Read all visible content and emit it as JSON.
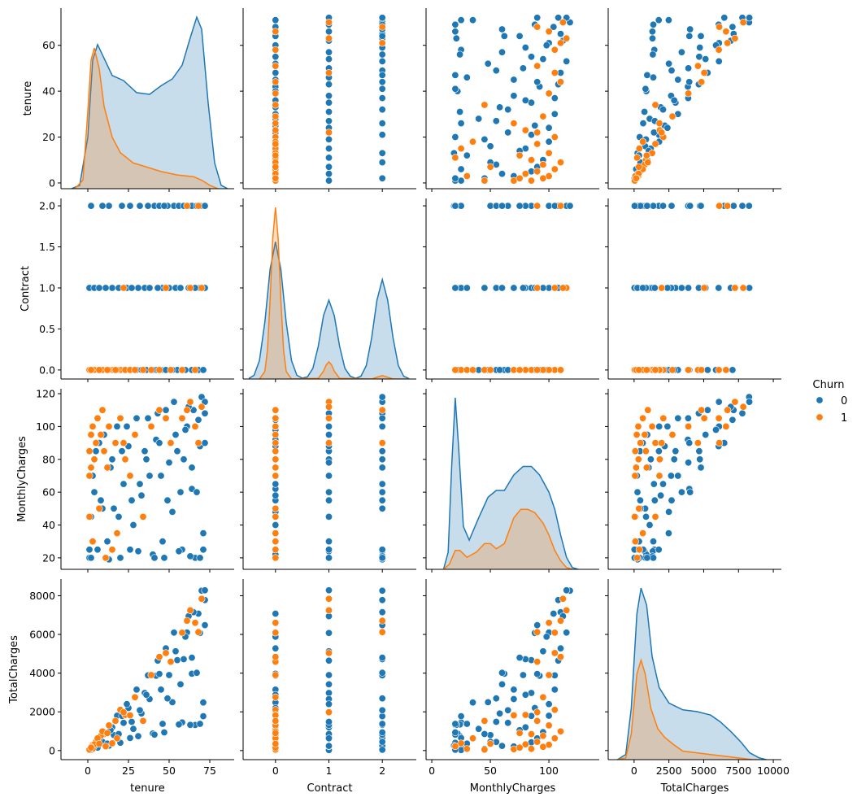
{
  "chart_data": {
    "type": "pairplot",
    "variables": [
      "tenure",
      "Contract",
      "MonthlyCharges",
      "TotalCharges"
    ],
    "hue": "Churn",
    "legend": {
      "title": "Churn",
      "entries": [
        "0",
        "1"
      ],
      "placement": "right"
    },
    "colors": {
      "0": "#1f77b4",
      "1": "#ff7f0e"
    },
    "diagonal": "kde",
    "offdiagonal": "scatter",
    "grid": false,
    "axes": {
      "tenure": {
        "lim": [
          -16.5,
          90
        ],
        "ylim": [
          -2.5,
          76.2
        ],
        "xticks": [
          "0",
          "25",
          "50",
          "75"
        ],
        "yticks": [
          "0",
          "20",
          "40",
          "60"
        ]
      },
      "Contract": {
        "lim": [
          -0.606,
          2.636
        ],
        "ylim": [
          -0.11,
          2.09
        ],
        "xticks": [
          "0",
          "1",
          "2"
        ],
        "yticks": [
          "0.0",
          "0.5",
          "1.0",
          "1.5",
          "2.0"
        ]
      },
      "MonthlyCharges": {
        "lim": [
          -4.9,
          143
        ],
        "ylim": [
          13,
          123
        ],
        "xticks": [
          "0",
          "50",
          "100"
        ],
        "yticks": [
          "20",
          "40",
          "60",
          "80",
          "100",
          "120"
        ]
      },
      "TotalCharges": {
        "lim": [
          -1860,
          10580
        ],
        "ylim": [
          -470,
          8860
        ],
        "xticks": [
          "0",
          "2500",
          "5000",
          "7500",
          "10000"
        ],
        "yticks": [
          "0",
          "2000",
          "4000",
          "6000",
          "8000"
        ]
      }
    },
    "sample_records_columns": [
      "tenure",
      "Contract",
      "MonthlyCharges",
      "TotalCharges",
      "Churn"
    ],
    "sample_records": [
      [
        1,
        0,
        20,
        20,
        0
      ],
      [
        2,
        0,
        45,
        90,
        0
      ],
      [
        3,
        0,
        70,
        210,
        0
      ],
      [
        5,
        0,
        85,
        425,
        0
      ],
      [
        6,
        0,
        25,
        150,
        0
      ],
      [
        8,
        0,
        55,
        440,
        0
      ],
      [
        10,
        0,
        95,
        950,
        0
      ],
      [
        12,
        0,
        30,
        360,
        0
      ],
      [
        14,
        0,
        75,
        1050,
        0
      ],
      [
        16,
        0,
        50,
        800,
        0
      ],
      [
        18,
        0,
        100,
        1800,
        0
      ],
      [
        20,
        0,
        20,
        400,
        0
      ],
      [
        22,
        0,
        65,
        1430,
        0
      ],
      [
        25,
        0,
        88,
        2200,
        0
      ],
      [
        28,
        0,
        40,
        1120,
        0
      ],
      [
        30,
        0,
        105,
        3150,
        0
      ],
      [
        33,
        0,
        58,
        1914,
        0
      ],
      [
        36,
        0,
        80,
        2880,
        0
      ],
      [
        40,
        0,
        22,
        880,
        0
      ],
      [
        42,
        0,
        92,
        3864,
        0
      ],
      [
        45,
        0,
        70,
        3150,
        0
      ],
      [
        48,
        0,
        110,
        5280,
        0
      ],
      [
        52,
        0,
        48,
        2496,
        0
      ],
      [
        55,
        0,
        85,
        4675,
        0
      ],
      [
        58,
        0,
        25,
        1450,
        0
      ],
      [
        60,
        0,
        98,
        5880,
        0
      ],
      [
        64,
        0,
        62,
        3968,
        0
      ],
      [
        68,
        0,
        104,
        7072,
        0
      ],
      [
        71,
        0,
        35,
        2485,
        0
      ],
      [
        1,
        1,
        25,
        25,
        0
      ],
      [
        4,
        1,
        60,
        240,
        0
      ],
      [
        7,
        1,
        90,
        630,
        0
      ],
      [
        11,
        1,
        20,
        220,
        0
      ],
      [
        15,
        1,
        80,
        1200,
        0
      ],
      [
        19,
        1,
        45,
        855,
        0
      ],
      [
        24,
        1,
        100,
        2400,
        0
      ],
      [
        27,
        1,
        55,
        1485,
        0
      ],
      [
        31,
        1,
        24,
        744,
        0
      ],
      [
        35,
        1,
        85,
        2975,
        0
      ],
      [
        38,
        1,
        70,
        2660,
        0
      ],
      [
        43,
        1,
        108,
        4644,
        0
      ],
      [
        46,
        1,
        30,
        1380,
        0
      ],
      [
        50,
        1,
        78,
        3900,
        0
      ],
      [
        54,
        1,
        95,
        5130,
        0
      ],
      [
        57,
        1,
        60,
        3420,
        0
      ],
      [
        62,
        1,
        112,
        6944,
        0
      ],
      [
        66,
        1,
        20,
        1320,
        0
      ],
      [
        69,
        1,
        88,
        6072,
        0
      ],
      [
        72,
        1,
        115,
        8280,
        0
      ],
      [
        2,
        2,
        20,
        40,
        0
      ],
      [
        9,
        2,
        50,
        450,
        0
      ],
      [
        13,
        2,
        19,
        247,
        0
      ],
      [
        21,
        2,
        85,
        1785,
        0
      ],
      [
        26,
        2,
        25,
        650,
        0
      ],
      [
        32,
        2,
        65,
        2080,
        0
      ],
      [
        37,
        2,
        105,
        3885,
        0
      ],
      [
        41,
        2,
        20,
        820,
        0
      ],
      [
        44,
        2,
        90,
        3960,
        0
      ],
      [
        49,
        2,
        55,
        2695,
        0
      ],
      [
        53,
        2,
        115,
        6095,
        0
      ],
      [
        56,
        2,
        24,
        1344,
        0
      ],
      [
        59,
        2,
        80,
        4720,
        0
      ],
      [
        61,
        2,
        100,
        6100,
        0
      ],
      [
        63,
        2,
        21,
        1323,
        0
      ],
      [
        65,
        2,
        110,
        7150,
        0
      ],
      [
        67,
        2,
        60,
        4020,
        0
      ],
      [
        70,
        2,
        118,
        8260,
        0
      ],
      [
        71,
        2,
        25,
        1775,
        0
      ],
      [
        72,
        2,
        90,
        6480,
        0
      ],
      [
        72,
        2,
        108,
        7776,
        0
      ],
      [
        69,
        2,
        20,
        1380,
        0
      ],
      [
        64,
        2,
        75,
        4800,
        0
      ],
      [
        47,
        2,
        20,
        940,
        0
      ],
      [
        1,
        0,
        70,
        70,
        1
      ],
      [
        1,
        0,
        85,
        85,
        1
      ],
      [
        1,
        0,
        45,
        45,
        1
      ],
      [
        2,
        0,
        95,
        190,
        1
      ],
      [
        2,
        0,
        75,
        150,
        1
      ],
      [
        3,
        0,
        100,
        300,
        1
      ],
      [
        3,
        0,
        30,
        90,
        1
      ],
      [
        4,
        0,
        80,
        320,
        1
      ],
      [
        5,
        0,
        90,
        450,
        1
      ],
      [
        6,
        0,
        105,
        630,
        1
      ],
      [
        7,
        0,
        50,
        350,
        1
      ],
      [
        8,
        0,
        95,
        760,
        1
      ],
      [
        10,
        0,
        85,
        850,
        1
      ],
      [
        12,
        0,
        75,
        900,
        1
      ],
      [
        13,
        0,
        100,
        1300,
        1
      ],
      [
        15,
        0,
        25,
        375,
        1
      ],
      [
        17,
        0,
        90,
        1530,
        1
      ],
      [
        20,
        0,
        105,
        2100,
        1
      ],
      [
        23,
        0,
        80,
        1840,
        1
      ],
      [
        26,
        0,
        70,
        1820,
        1
      ],
      [
        29,
        0,
        95,
        2755,
        1
      ],
      [
        34,
        0,
        45,
        1530,
        1
      ],
      [
        39,
        0,
        100,
        3900,
        1
      ],
      [
        44,
        0,
        110,
        4840,
        1
      ],
      [
        51,
        0,
        90,
        4590,
        1
      ],
      [
        58,
        0,
        105,
        6090,
        1
      ],
      [
        66,
        0,
        100,
        6600,
        1
      ],
      [
        9,
        0,
        110,
        990,
        1
      ],
      [
        11,
        0,
        20,
        220,
        1
      ],
      [
        18,
        0,
        35,
        630,
        1
      ],
      [
        22,
        1,
        90,
        1980,
        1
      ],
      [
        48,
        1,
        105,
        5040,
        1
      ],
      [
        63,
        1,
        115,
        7245,
        1
      ],
      [
        70,
        1,
        112,
        7840,
        1
      ],
      [
        61,
        2,
        110,
        6710,
        1
      ],
      [
        68,
        2,
        90,
        6120,
        1
      ]
    ],
    "kde_relative_density": {
      "tenure": {
        "0": {
          "x": [
            -10,
            -5,
            0,
            3,
            6,
            10,
            15,
            22,
            30,
            38,
            45,
            52,
            58,
            63,
            67,
            70,
            74,
            78,
            82,
            86
          ],
          "y": [
            0,
            0.02,
            0.3,
            0.75,
            0.84,
            0.76,
            0.66,
            0.63,
            0.56,
            0.55,
            0.6,
            0.64,
            0.72,
            0.88,
            1.0,
            0.93,
            0.5,
            0.15,
            0.02,
            0
          ]
        },
        "1": {
          "x": [
            -8,
            -3,
            0,
            2,
            4,
            7,
            10,
            15,
            20,
            28,
            35,
            45,
            55,
            65,
            70,
            75,
            80
          ],
          "y": [
            0,
            0.05,
            0.45,
            0.75,
            0.82,
            0.7,
            0.48,
            0.3,
            0.21,
            0.15,
            0.13,
            0.1,
            0.08,
            0.07,
            0.05,
            0.02,
            0
          ]
        }
      },
      "Contract": {
        "0": {
          "x": [
            -0.5,
            -0.4,
            -0.3,
            -0.2,
            -0.1,
            0,
            0.1,
            0.2,
            0.3,
            0.4,
            0.5,
            0.6,
            0.7,
            0.8,
            0.9,
            1.0,
            1.1,
            1.2,
            1.3,
            1.4,
            1.5,
            1.6,
            1.7,
            1.8,
            1.9,
            2.0,
            2.1,
            2.2,
            2.3,
            2.4,
            2.5
          ],
          "y": [
            0.003,
            0.022,
            0.108,
            0.33,
            0.64,
            0.8,
            0.64,
            0.33,
            0.108,
            0.022,
            0.005,
            0.013,
            0.062,
            0.19,
            0.37,
            0.46,
            0.37,
            0.19,
            0.062,
            0.016,
            0.004,
            0.016,
            0.078,
            0.24,
            0.46,
            0.58,
            0.46,
            0.24,
            0.078,
            0.016,
            0.002
          ]
        },
        "1": {
          "x": [
            -0.3,
            -0.2,
            -0.15,
            -0.1,
            -0.05,
            0,
            0.05,
            0.1,
            0.15,
            0.2,
            0.3,
            0.8,
            0.9,
            0.95,
            1,
            1.05,
            1.1,
            1.2,
            1.8,
            1.9,
            2,
            2.1,
            2.2,
            2.5
          ],
          "y": [
            0,
            0.044,
            0.17,
            0.46,
            0.82,
            1,
            0.82,
            0.46,
            0.17,
            0.044,
            0,
            0.004,
            0.046,
            0.082,
            0.1,
            0.082,
            0.046,
            0.004,
            0,
            0.01,
            0.02,
            0.01,
            0,
            0
          ]
        }
      },
      "MonthlyCharges": {
        "0": {
          "x": [
            10,
            14,
            17,
            20,
            23,
            27,
            32,
            40,
            48,
            55,
            62,
            70,
            78,
            85,
            92,
            100,
            105,
            110,
            115,
            120,
            125
          ],
          "y": [
            0,
            0.1,
            0.6,
            1.0,
            0.7,
            0.25,
            0.17,
            0.3,
            0.42,
            0.46,
            0.46,
            0.55,
            0.6,
            0.6,
            0.55,
            0.45,
            0.35,
            0.2,
            0.07,
            0.01,
            0
          ]
        },
        "1": {
          "x": [
            10,
            15,
            20,
            24,
            30,
            38,
            45,
            50,
            55,
            62,
            70,
            76,
            82,
            88,
            95,
            100,
            105,
            110,
            115,
            120
          ],
          "y": [
            0,
            0.03,
            0.11,
            0.11,
            0.07,
            0.1,
            0.15,
            0.15,
            0.12,
            0.15,
            0.3,
            0.35,
            0.35,
            0.33,
            0.27,
            0.2,
            0.11,
            0.05,
            0.01,
            0
          ]
        }
      },
      "TotalCharges": {
        "0": {
          "x": [
            -1200,
            -600,
            -200,
            200,
            500,
            900,
            1300,
            1800,
            2500,
            3500,
            4500,
            5500,
            6200,
            7000,
            7700,
            8300,
            9000,
            9500
          ],
          "y": [
            0,
            0.03,
            0.3,
            0.85,
            1.0,
            0.9,
            0.6,
            0.42,
            0.33,
            0.29,
            0.28,
            0.26,
            0.22,
            0.16,
            0.1,
            0.04,
            0.01,
            0
          ]
        },
        "1": {
          "x": [
            -1200,
            -600,
            -200,
            200,
            500,
            800,
            1200,
            1700,
            2200,
            2800,
            3500,
            4500,
            5500,
            6500,
            7500,
            8500,
            9000
          ],
          "y": [
            0,
            0.01,
            0.15,
            0.5,
            0.58,
            0.5,
            0.3,
            0.18,
            0.13,
            0.09,
            0.05,
            0.04,
            0.03,
            0.02,
            0.01,
            0,
            0
          ]
        }
      }
    }
  }
}
